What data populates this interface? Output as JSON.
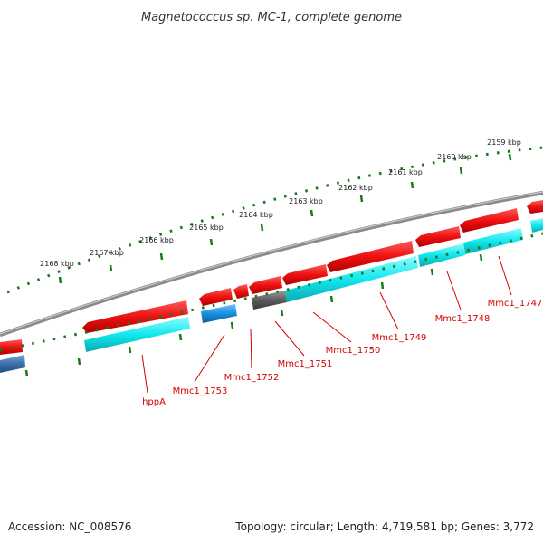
{
  "title": "Magnetococcus sp. MC-1, complete genome",
  "footer": {
    "accession": "Accession: NC_008576",
    "summary": "Topology: circular; Length: 4,719,581 bp; Genes: 3,772"
  },
  "scale_labels": [
    "2159 kbp",
    "2160 kbp",
    "2161 kbp",
    "2162 kbp",
    "2163 kbp",
    "2164 kbp",
    "2165 kbp",
    "2166 kbp",
    "2167 kbp",
    "2168 kbp"
  ],
  "gene_labels": [
    "hppA",
    "Mmc1_1753",
    "Mmc1_1752",
    "Mmc1_1751",
    "Mmc1_1750",
    "Mmc1_1749",
    "Mmc1_1748",
    "Mmc1_1747"
  ],
  "colors": {
    "backbone": "#8a8a8a",
    "ticks": "#1a7a1a",
    "cds_red": "#ee1111",
    "cds_cyan": "#10e8ee",
    "cds_blue": "#1a8fdc",
    "cds_gray": "#5c5c5c",
    "label_red": "#d40000"
  }
}
